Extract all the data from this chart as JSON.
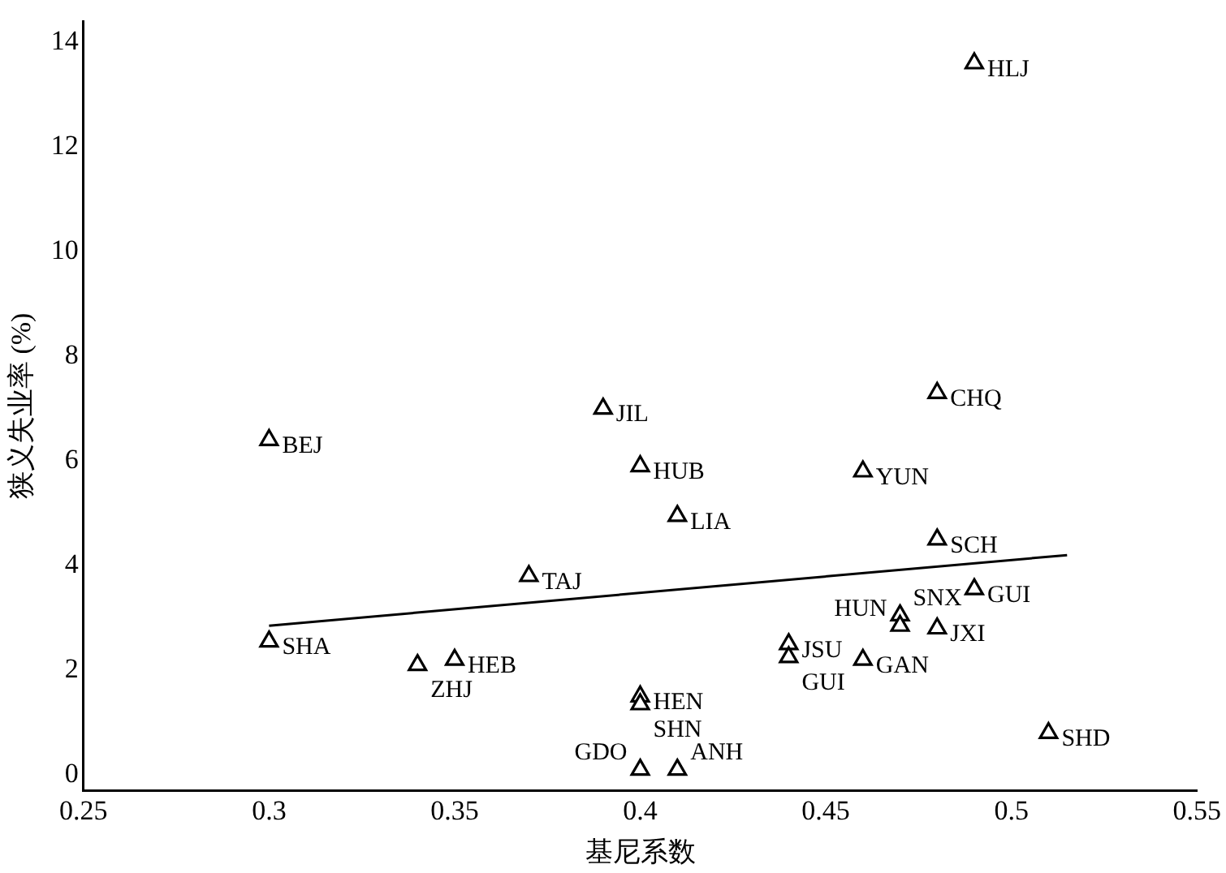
{
  "chart_data": {
    "type": "scatter",
    "xlabel": "基尼系数",
    "ylabel": "狭义失业率 (%)",
    "x": [
      0.49,
      0.48,
      0.39,
      0.3,
      0.4,
      0.46,
      0.41,
      0.48,
      0.37,
      0.49,
      0.3,
      0.34,
      0.35,
      0.44,
      0.44,
      0.46,
      0.47,
      0.47,
      0.48,
      0.4,
      0.4,
      0.51,
      0.4,
      0.41
    ],
    "series": [
      {
        "type": "scatter",
        "color": "#000000",
        "values": [
          13.6,
          7.3,
          7.0,
          6.4,
          5.9,
          5.8,
          4.95,
          4.5,
          3.8,
          3.55,
          2.55,
          2.1,
          2.2,
          2.5,
          2.25,
          2.2,
          3.05,
          2.85,
          2.8,
          1.5,
          1.35,
          0.8,
          0.1,
          0.1
        ]
      },
      {
        "type": "line",
        "color": "#000000",
        "x": [
          0.3,
          0.515
        ],
        "values": [
          2.85,
          4.2
        ],
        "marker": "none"
      }
    ],
    "marker": "triangle",
    "grid": false,
    "legend": false,
    "xlim": [
      0.25,
      0.55
    ],
    "xticks": [
      0.25,
      0.3,
      0.35,
      0.4,
      0.45,
      0.5,
      0.55
    ],
    "ylim": [
      -0.3,
      14.4
    ],
    "yticks": [
      0,
      2,
      4,
      6,
      8,
      10,
      12,
      14
    ],
    "annotations": [
      {
        "text": "HLJ",
        "x": 0.49,
        "y": 13.6
      },
      {
        "text": "CHQ",
        "x": 0.48,
        "y": 7.3
      },
      {
        "text": "JIL",
        "x": 0.39,
        "y": 7.0
      },
      {
        "text": "BEJ",
        "x": 0.3,
        "y": 6.4
      },
      {
        "text": "HUB",
        "x": 0.4,
        "y": 5.9
      },
      {
        "text": "YUN",
        "x": 0.46,
        "y": 5.8
      },
      {
        "text": "LIA",
        "x": 0.41,
        "y": 4.95
      },
      {
        "text": "SCH",
        "x": 0.48,
        "y": 4.5
      },
      {
        "text": "TAJ",
        "x": 0.37,
        "y": 3.8
      },
      {
        "text": "GUI",
        "x": 0.49,
        "y": 3.55
      },
      {
        "text": "SHA",
        "x": 0.3,
        "y": 2.55
      },
      {
        "text": "ZHJ",
        "x": 0.34,
        "y": 2.1
      },
      {
        "text": "HEB",
        "x": 0.35,
        "y": 2.2
      },
      {
        "text": "JSU",
        "x": 0.44,
        "y": 2.5
      },
      {
        "text": "GUI",
        "x": 0.44,
        "y": 2.25
      },
      {
        "text": "GAN",
        "x": 0.46,
        "y": 2.2
      },
      {
        "text": "SNX",
        "x": 0.47,
        "y": 3.05
      },
      {
        "text": "HUN",
        "x": 0.47,
        "y": 2.85
      },
      {
        "text": "JXI",
        "x": 0.48,
        "y": 2.8
      },
      {
        "text": "HEN",
        "x": 0.4,
        "y": 1.5
      },
      {
        "text": "SHN",
        "x": 0.4,
        "y": 1.35
      },
      {
        "text": "SHD",
        "x": 0.51,
        "y": 0.8
      },
      {
        "text": "GDO",
        "x": 0.4,
        "y": 0.1
      },
      {
        "text": "ANH",
        "x": 0.41,
        "y": 0.1
      }
    ]
  }
}
